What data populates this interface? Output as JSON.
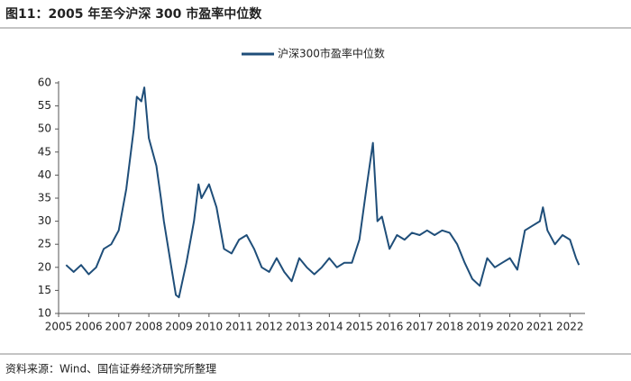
{
  "chart_data": {
    "type": "line",
    "title": "图11：2005 年至今沪深 300 市盈率中位数",
    "source": "资料来源：Wind、国信证券经济研究所整理",
    "xlim": [
      2005,
      2022.5
    ],
    "xticks": [
      2005,
      2006,
      2007,
      2008,
      2009,
      2010,
      2011,
      2012,
      2013,
      2014,
      2015,
      2016,
      2017,
      2018,
      2019,
      2020,
      2021,
      2022
    ],
    "ylim": [
      10,
      60
    ],
    "yticks": [
      10,
      15,
      20,
      25,
      30,
      35,
      40,
      45,
      50,
      55,
      60
    ],
    "grid": false,
    "legend": "top",
    "x": [
      2005.25,
      2005.5,
      2005.75,
      2006,
      2006.25,
      2006.5,
      2006.75,
      2007,
      2007.25,
      2007.5,
      2007.6,
      2007.75,
      2007.85,
      2008,
      2008.25,
      2008.4,
      2008.5,
      2008.75,
      2008.9,
      2009,
      2009.25,
      2009.5,
      2009.65,
      2009.75,
      2010,
      2010.25,
      2010.5,
      2010.75,
      2011,
      2011.25,
      2011.5,
      2011.75,
      2012,
      2012.25,
      2012.5,
      2012.75,
      2013,
      2013.25,
      2013.5,
      2013.75,
      2014,
      2014.25,
      2014.5,
      2014.75,
      2015,
      2015.25,
      2015.45,
      2015.6,
      2015.75,
      2016,
      2016.25,
      2016.5,
      2016.75,
      2017,
      2017.25,
      2017.5,
      2017.75,
      2018,
      2018.25,
      2018.5,
      2018.75,
      2019,
      2019.25,
      2019.5,
      2019.75,
      2020,
      2020.25,
      2020.5,
      2020.75,
      2021,
      2021.1,
      2021.25,
      2021.5,
      2021.75,
      2022,
      2022.2,
      2022.3
    ],
    "series": [
      {
        "name": "沪深300市盈率中位数",
        "color": "#1f4e79",
        "values": [
          20.5,
          19,
          20.5,
          18.5,
          20,
          24,
          25,
          28,
          37,
          50,
          57,
          56,
          59,
          48,
          42,
          35,
          30,
          20,
          14,
          13.5,
          21,
          30,
          38,
          35,
          38,
          33,
          24,
          23,
          26,
          27,
          24,
          20,
          19,
          22,
          19,
          17,
          22,
          20,
          18.5,
          20,
          22,
          20,
          21,
          21,
          26,
          38,
          47,
          30,
          31,
          24,
          27,
          26,
          27.5,
          27,
          28,
          27,
          28,
          27.5,
          25,
          21,
          17.5,
          16,
          22,
          20,
          21,
          22,
          19.5,
          28,
          29,
          30,
          33,
          28,
          25,
          27,
          26,
          22,
          20.5
        ]
      }
    ]
  }
}
